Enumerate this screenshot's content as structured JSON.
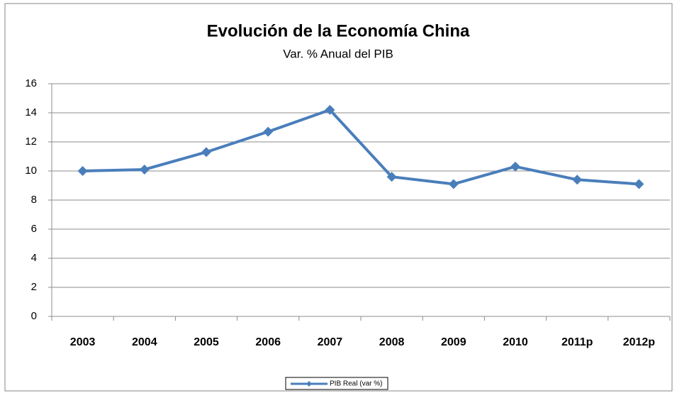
{
  "chart_data": {
    "type": "line",
    "title": "Evolución de la Economía China",
    "subtitle": "Var. % Anual del PIB",
    "categories": [
      "2003",
      "2004",
      "2005",
      "2006",
      "2007",
      "2008",
      "2009",
      "2010",
      "2011p",
      "2012p"
    ],
    "series": [
      {
        "name": "PIB Real (var %)",
        "color": "#4a7ebb",
        "values": [
          10.0,
          10.1,
          11.3,
          12.7,
          14.2,
          9.6,
          9.1,
          10.3,
          9.4,
          9.1
        ]
      }
    ],
    "ylim": [
      0,
      16
    ],
    "yticks": [
      0,
      2,
      4,
      6,
      8,
      10,
      12,
      14,
      16
    ],
    "grid": true,
    "legend": "bottom"
  }
}
